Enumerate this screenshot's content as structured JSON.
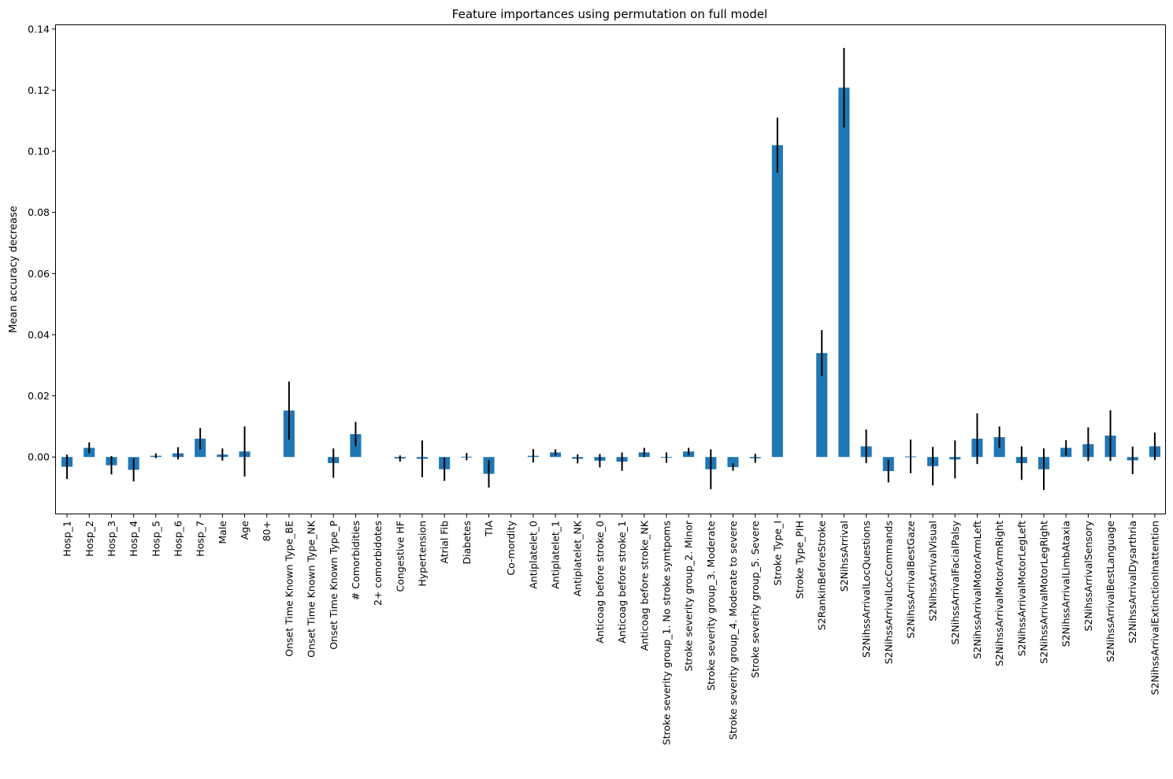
{
  "chart_data": {
    "type": "bar",
    "title": "Feature importances using permutation on full model",
    "xlabel": "",
    "ylabel": "Mean accuracy decrease",
    "ylim": [
      -0.0185,
      0.1415
    ],
    "yticks": [
      0.0,
      0.02,
      0.04,
      0.06,
      0.08,
      0.1,
      0.12,
      0.14
    ],
    "ytick_labels": [
      "0.00",
      "0.02",
      "0.04",
      "0.06",
      "0.08",
      "0.10",
      "0.12",
      "0.14"
    ],
    "grid": false,
    "bar_color": "#1f77b4",
    "error_color": "#000000",
    "categories": [
      "Hosp_1",
      "Hosp_2",
      "Hosp_3",
      "Hosp_4",
      "Hosp_5",
      "Hosp_6",
      "Hosp_7",
      "Male",
      "Age",
      "80+",
      "Onset Time Known Type_BE",
      "Onset Time Known Type_NK",
      "Onset Time Known Type_P",
      "# Comorbidities",
      "2+ comorbidotes",
      "Congestive HF",
      "Hypertension",
      "Atrial Fib",
      "Diabetes",
      "TIA",
      "Co-mordity",
      "Antiplatelet_0",
      "Antiplatelet_1",
      "Antiplatelet_NK",
      "Anticoag before stroke_0",
      "Anticoag before stroke_1",
      "Anticoag before stroke_NK",
      "Stroke severity group_1. No stroke symtpoms",
      "Stroke severity group_2. Minor",
      "Stroke severity group_3. Moderate",
      "Stroke severity group_4. Moderate to severe",
      "Stroke severity group_5. Severe",
      "Stroke Type_I",
      "Stroke Type_PIH",
      "S2RankinBeforeStroke",
      "S2NihssArrival",
      "S2NihssArrivalLocQuestions",
      "S2NihssArrivalLocCommands",
      "S2NihssArrivalBestGaze",
      "S2NihssArrivalVisual",
      "S2NihssArrivalFacialPalsy",
      "S2NihssArrivalMotorArmLeft",
      "S2NihssArrivalMotorArmRight",
      "S2NihssArrivalMotorLegLeft",
      "S2NihssArrivalMotorLegRight",
      "S2NihssArrivalLimbAtaxia",
      "S2NihssArrivalSensory",
      "S2NihssArrivalBestLanguage",
      "S2NihssArrivalDysarthria",
      "S2NihssArrivalExtinctionInattention"
    ],
    "values": [
      -0.0032,
      0.003,
      -0.0027,
      -0.0042,
      0.0004,
      0.0012,
      0.006,
      0.0008,
      0.0018,
      0.0,
      0.0152,
      0.0,
      -0.002,
      0.0075,
      0.0,
      -0.0005,
      -0.0006,
      -0.004,
      0.0001,
      -0.0055,
      0.0,
      0.0004,
      0.0015,
      -0.0006,
      -0.0012,
      -0.0015,
      0.0015,
      -0.0002,
      0.0018,
      -0.004,
      -0.0033,
      -0.0004,
      0.102,
      0.0,
      0.034,
      0.1208,
      0.0035,
      -0.0046,
      0.0002,
      -0.003,
      -0.0008,
      0.006,
      0.0065,
      -0.002,
      -0.004,
      0.003,
      0.0042,
      0.007,
      -0.0011,
      0.0035
    ],
    "errors": [
      0.004,
      0.0018,
      0.003,
      0.0038,
      0.0008,
      0.002,
      0.0035,
      0.002,
      0.0082,
      0.0,
      0.0095,
      0.0,
      0.0048,
      0.004,
      0.0,
      0.001,
      0.006,
      0.0038,
      0.0012,
      0.0045,
      0.0,
      0.0022,
      0.001,
      0.0015,
      0.0022,
      0.003,
      0.0015,
      0.0017,
      0.0012,
      0.0065,
      0.0012,
      0.0015,
      0.009,
      0.0,
      0.0075,
      0.013,
      0.0055,
      0.0037,
      0.0055,
      0.0063,
      0.0062,
      0.0083,
      0.0035,
      0.0055,
      0.0068,
      0.0025,
      0.0055,
      0.0083,
      0.0045,
      0.0045
    ]
  }
}
